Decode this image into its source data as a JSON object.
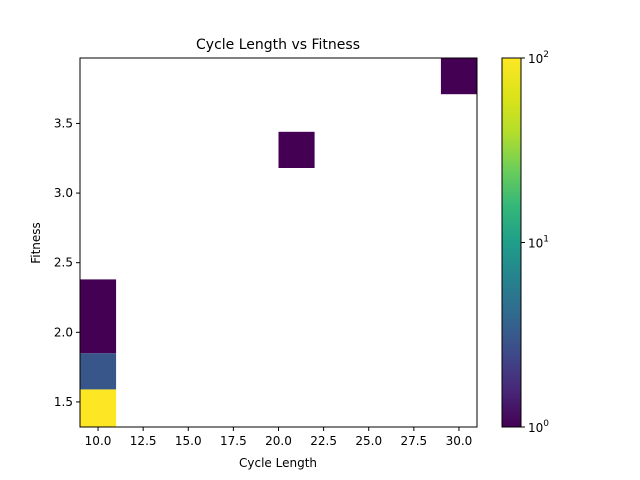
{
  "chart_data": {
    "type": "heatmap",
    "title": "Cycle Length vs Fitness",
    "xlabel": "Cycle Length",
    "ylabel": "Fitness",
    "xlim": [
      9.0,
      31.0
    ],
    "ylim": [
      1.32,
      3.97
    ],
    "x_ticks": [
      10.0,
      12.5,
      15.0,
      17.5,
      20.0,
      22.5,
      25.0,
      27.5,
      30.0
    ],
    "x_tick_labels": [
      "10.0",
      "12.5",
      "15.0",
      "17.5",
      "20.0",
      "22.5",
      "25.0",
      "27.5",
      "30.0"
    ],
    "y_ticks": [
      1.5,
      2.0,
      2.5,
      3.0,
      3.5
    ],
    "y_tick_labels": [
      "1.5",
      "2.0",
      "2.5",
      "3.0",
      "3.5"
    ],
    "grid": false,
    "colorscale": "viridis",
    "color_scale_type": "log",
    "colorbar": {
      "range": [
        1,
        100
      ],
      "ticks": [
        1,
        10,
        100
      ],
      "tick_labels": [
        "10",
        "10",
        "10"
      ],
      "tick_exponents": [
        "0",
        "1",
        "2"
      ]
    },
    "cells": [
      {
        "x0": 9.0,
        "x1": 11.0,
        "y0": 1.32,
        "y1": 1.59,
        "count": 100
      },
      {
        "x0": 9.0,
        "x1": 11.0,
        "y0": 1.59,
        "y1": 1.85,
        "count": 3
      },
      {
        "x0": 9.0,
        "x1": 11.0,
        "y0": 1.85,
        "y1": 2.38,
        "count": 1
      },
      {
        "x0": 20.0,
        "x1": 22.0,
        "y0": 3.18,
        "y1": 3.44,
        "count": 1
      },
      {
        "x0": 29.0,
        "x1": 31.0,
        "y0": 3.71,
        "y1": 3.97,
        "count": 1
      }
    ]
  }
}
